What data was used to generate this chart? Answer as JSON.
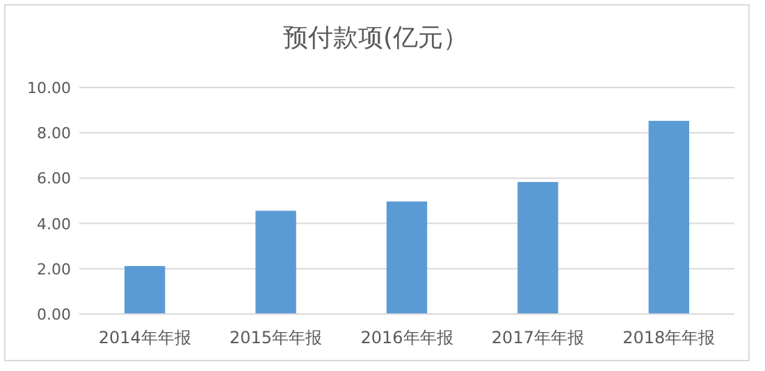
{
  "chart_data": {
    "type": "bar",
    "title": "预付款项(亿元）",
    "categories": [
      "2014年年报",
      "2015年年报",
      "2016年年报",
      "2017年年报",
      "2018年年报"
    ],
    "values": [
      2.12,
      4.56,
      4.97,
      5.83,
      8.53
    ],
    "color": "#5b9bd5",
    "ylim": [
      0,
      10
    ],
    "yticks": [
      {
        "value": 0,
        "label": "0.00"
      },
      {
        "value": 2,
        "label": "2.00"
      },
      {
        "value": 4,
        "label": "4.00"
      },
      {
        "value": 6,
        "label": "6.00"
      },
      {
        "value": 8,
        "label": "8.00"
      },
      {
        "value": 10,
        "label": "10.00"
      }
    ],
    "grid": "y"
  }
}
